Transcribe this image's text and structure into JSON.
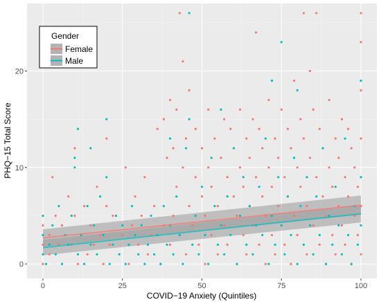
{
  "chart_data": {
    "type": "scatter",
    "title": "",
    "xlabel": "COVID−19 Anxiety (Quintiles)",
    "ylabel": "PHQ−15 Total Score",
    "xlim": [
      -5,
      105
    ],
    "ylim": [
      -1.5,
      27
    ],
    "x_ticks": [
      "0",
      "25",
      "50",
      "75",
      "100"
    ],
    "y_ticks": [
      "0",
      "10",
      "20"
    ],
    "x_tick_values": [
      0,
      25,
      50,
      75,
      100
    ],
    "y_tick_values": [
      0,
      10,
      20
    ],
    "grid": true,
    "legend_position": "top-left",
    "legend_title": "Gender",
    "background": "#ebebeb",
    "series": [
      {
        "name": "Female",
        "color": "#f8766d",
        "fit_line": {
          "x": [
            0,
            100
          ],
          "y": [
            2.7,
            6.1
          ]
        },
        "confidence_band": {
          "x": [
            0,
            100
          ],
          "lower": [
            1.8,
            5.1
          ],
          "upper": [
            3.6,
            7.1
          ]
        },
        "points": [
          [
            0,
            0
          ],
          [
            0,
            2
          ],
          [
            0,
            4
          ],
          [
            2,
            1
          ],
          [
            2,
            3
          ],
          [
            3,
            9
          ],
          [
            4,
            5
          ],
          [
            5,
            2
          ],
          [
            6,
            4
          ],
          [
            7,
            3
          ],
          [
            8,
            7
          ],
          [
            9,
            2
          ],
          [
            10,
            5
          ],
          [
            10,
            12
          ],
          [
            11,
            0
          ],
          [
            12,
            3
          ],
          [
            13,
            6
          ],
          [
            14,
            1
          ],
          [
            15,
            4
          ],
          [
            16,
            2
          ],
          [
            17,
            8
          ],
          [
            18,
            3
          ],
          [
            19,
            0
          ],
          [
            20,
            6
          ],
          [
            20,
            13
          ],
          [
            21,
            2
          ],
          [
            22,
            5
          ],
          [
            24,
            1
          ],
          [
            25,
            3
          ],
          [
            26,
            10
          ],
          [
            27,
            0
          ],
          [
            28,
            4
          ],
          [
            29,
            7
          ],
          [
            30,
            2
          ],
          [
            31,
            5
          ],
          [
            32,
            9
          ],
          [
            33,
            1
          ],
          [
            34,
            3
          ],
          [
            35,
            6
          ],
          [
            36,
            14
          ],
          [
            37,
            0
          ],
          [
            38,
            4
          ],
          [
            38,
            15
          ],
          [
            39,
            11
          ],
          [
            40,
            2
          ],
          [
            40,
            17
          ],
          [
            41,
            5
          ],
          [
            41,
            12
          ],
          [
            42,
            8
          ],
          [
            42,
            16
          ],
          [
            43,
            3
          ],
          [
            43,
            26
          ],
          [
            44,
            10
          ],
          [
            44,
            21
          ],
          [
            45,
            1
          ],
          [
            45,
            13
          ],
          [
            46,
            6
          ],
          [
            46,
            18
          ],
          [
            47,
            4
          ],
          [
            48,
            9
          ],
          [
            48,
            14
          ],
          [
            49,
            2
          ],
          [
            50,
            7
          ],
          [
            50,
            12
          ],
          [
            51,
            0
          ],
          [
            51,
            5
          ],
          [
            52,
            16
          ],
          [
            52,
            10
          ],
          [
            53,
            3
          ],
          [
            53,
            8
          ],
          [
            54,
            13
          ],
          [
            55,
            1
          ],
          [
            55,
            6
          ],
          [
            56,
            11
          ],
          [
            57,
            4
          ],
          [
            57,
            15
          ],
          [
            58,
            9
          ],
          [
            58,
            2
          ],
          [
            59,
            14
          ],
          [
            60,
            7
          ],
          [
            60,
            12
          ],
          [
            61,
            0
          ],
          [
            61,
            5
          ],
          [
            62,
            10
          ],
          [
            62,
            16
          ],
          [
            63,
            3
          ],
          [
            63,
            8
          ],
          [
            64,
            13
          ],
          [
            64,
            1
          ],
          [
            65,
            6
          ],
          [
            65,
            11
          ],
          [
            66,
            15
          ],
          [
            66,
            4
          ],
          [
            67,
            9
          ],
          [
            67,
            24
          ],
          [
            68,
            2
          ],
          [
            68,
            14
          ],
          [
            69,
            7
          ],
          [
            69,
            12
          ],
          [
            70,
            0
          ],
          [
            70,
            5
          ],
          [
            71,
            10
          ],
          [
            71,
            17
          ],
          [
            72,
            3
          ],
          [
            72,
            8
          ],
          [
            73,
            13
          ],
          [
            73,
            1
          ],
          [
            74,
            6
          ],
          [
            74,
            11
          ],
          [
            75,
            4
          ],
          [
            75,
            16
          ],
          [
            76,
            9
          ],
          [
            76,
            2
          ],
          [
            77,
            14
          ],
          [
            77,
            7
          ],
          [
            78,
            12
          ],
          [
            78,
            0
          ],
          [
            79,
            5
          ],
          [
            79,
            19
          ],
          [
            80,
            10
          ],
          [
            80,
            3
          ],
          [
            81,
            8
          ],
          [
            81,
            15
          ],
          [
            82,
            26
          ],
          [
            82,
            13
          ],
          [
            83,
            1
          ],
          [
            83,
            6
          ],
          [
            84,
            11
          ],
          [
            84,
            20
          ],
          [
            85,
            4
          ],
          [
            85,
            16
          ],
          [
            86,
            26
          ],
          [
            86,
            9
          ],
          [
            87,
            2
          ],
          [
            87,
            14
          ],
          [
            88,
            7
          ],
          [
            88,
            12
          ],
          [
            89,
            0
          ],
          [
            89,
            5
          ],
          [
            90,
            10
          ],
          [
            90,
            17
          ],
          [
            91,
            3
          ],
          [
            91,
            8
          ],
          [
            92,
            13
          ],
          [
            92,
            1
          ],
          [
            93,
            6
          ],
          [
            93,
            11
          ],
          [
            94,
            4
          ],
          [
            94,
            15
          ],
          [
            95,
            9
          ],
          [
            95,
            2
          ],
          [
            96,
            14
          ],
          [
            96,
            7
          ],
          [
            97,
            12
          ],
          [
            97,
            0
          ],
          [
            98,
            5
          ],
          [
            98,
            10
          ],
          [
            99,
            3
          ],
          [
            99,
            8
          ],
          [
            100,
            26
          ],
          [
            100,
            23
          ],
          [
            100,
            18
          ],
          [
            100,
            13
          ],
          [
            100,
            6
          ],
          [
            100,
            1
          ]
        ]
      },
      {
        "name": "Male",
        "color": "#00bfc4",
        "fit_line": {
          "x": [
            0,
            100
          ],
          "y": [
            1.7,
            5.2
          ]
        },
        "confidence_band": {
          "x": [
            0,
            100
          ],
          "lower": [
            0.9,
            4.3
          ],
          "upper": [
            2.5,
            6.1
          ]
        },
        "points": [
          [
            0,
            1
          ],
          [
            0,
            3
          ],
          [
            0,
            5
          ],
          [
            1,
            0
          ],
          [
            2,
            2
          ],
          [
            3,
            4
          ],
          [
            4,
            1
          ],
          [
            5,
            6
          ],
          [
            6,
            0
          ],
          [
            7,
            3
          ],
          [
            8,
            2
          ],
          [
            9,
            5
          ],
          [
            10,
            11
          ],
          [
            10,
            10
          ],
          [
            11,
            1
          ],
          [
            11,
            14
          ],
          [
            12,
            3
          ],
          [
            13,
            0
          ],
          [
            14,
            6
          ],
          [
            15,
            2
          ],
          [
            15,
            12
          ],
          [
            16,
            4
          ],
          [
            17,
            1
          ],
          [
            18,
            7
          ],
          [
            19,
            3
          ],
          [
            20,
            15
          ],
          [
            20,
            9
          ],
          [
            21,
            0
          ],
          [
            22,
            2
          ],
          [
            23,
            5
          ],
          [
            24,
            1
          ],
          [
            25,
            4
          ],
          [
            26,
            0
          ],
          [
            27,
            2
          ],
          [
            28,
            6
          ],
          [
            29,
            3
          ],
          [
            30,
            1
          ],
          [
            31,
            4
          ],
          [
            32,
            0
          ],
          [
            33,
            2
          ],
          [
            34,
            5
          ],
          [
            35,
            1
          ],
          [
            36,
            3
          ],
          [
            37,
            0
          ],
          [
            38,
            6
          ],
          [
            39,
            2
          ],
          [
            40,
            13
          ],
          [
            40,
            4
          ],
          [
            41,
            1
          ],
          [
            42,
            7
          ],
          [
            43,
            3
          ],
          [
            44,
            0
          ],
          [
            45,
            12
          ],
          [
            46,
            26
          ],
          [
            46,
            15
          ],
          [
            47,
            2
          ],
          [
            48,
            5
          ],
          [
            49,
            1
          ],
          [
            50,
            8
          ],
          [
            51,
            3
          ],
          [
            52,
            0
          ],
          [
            53,
            11
          ],
          [
            54,
            6
          ],
          [
            55,
            2
          ],
          [
            56,
            16
          ],
          [
            56,
            4
          ],
          [
            57,
            1
          ],
          [
            58,
            7
          ],
          [
            59,
            3
          ],
          [
            60,
            12
          ],
          [
            61,
            0
          ],
          [
            62,
            5
          ],
          [
            63,
            9
          ],
          [
            64,
            2
          ],
          [
            65,
            6
          ],
          [
            66,
            1
          ],
          [
            67,
            4
          ],
          [
            68,
            8
          ],
          [
            69,
            3
          ],
          [
            70,
            13
          ],
          [
            71,
            0
          ],
          [
            72,
            19
          ],
          [
            72,
            5
          ],
          [
            73,
            2
          ],
          [
            74,
            9
          ],
          [
            75,
            23
          ],
          [
            75,
            4
          ],
          [
            76,
            1
          ],
          [
            77,
            7
          ],
          [
            78,
            3
          ],
          [
            79,
            11
          ],
          [
            80,
            18
          ],
          [
            80,
            0
          ],
          [
            81,
            6
          ],
          [
            82,
            2
          ],
          [
            83,
            9
          ],
          [
            84,
            4
          ],
          [
            85,
            1
          ],
          [
            86,
            7
          ],
          [
            87,
            3
          ],
          [
            88,
            12
          ],
          [
            89,
            0
          ],
          [
            90,
            5
          ],
          [
            91,
            2
          ],
          [
            92,
            8
          ],
          [
            93,
            4
          ],
          [
            94,
            1
          ],
          [
            95,
            13
          ],
          [
            96,
            3
          ],
          [
            97,
            0
          ],
          [
            98,
            6
          ],
          [
            99,
            2
          ],
          [
            100,
            19
          ],
          [
            100,
            9
          ],
          [
            100,
            4
          ]
        ]
      }
    ]
  }
}
